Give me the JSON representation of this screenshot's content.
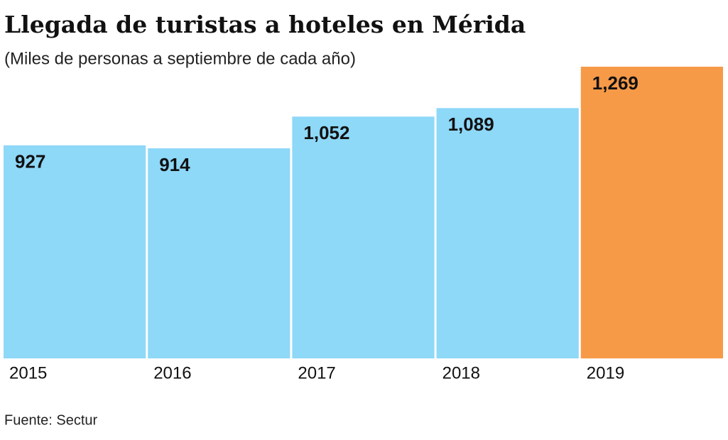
{
  "chart_data": {
    "type": "bar",
    "title": "Llegada de turistas a hoteles en Mérida",
    "subtitle": "(Miles de personas a septiembre de cada año)",
    "categories": [
      "2015",
      "2016",
      "2017",
      "2018",
      "2019"
    ],
    "values": [
      927,
      914,
      1052,
      1089,
      1269
    ],
    "value_labels": [
      "927",
      "914",
      "1,052",
      "1,089",
      "1,269"
    ],
    "colors": [
      "#8ed8f8",
      "#8ed8f8",
      "#8ed8f8",
      "#8ed8f8",
      "#f69a48"
    ],
    "source": "Fuente: Sectur"
  }
}
